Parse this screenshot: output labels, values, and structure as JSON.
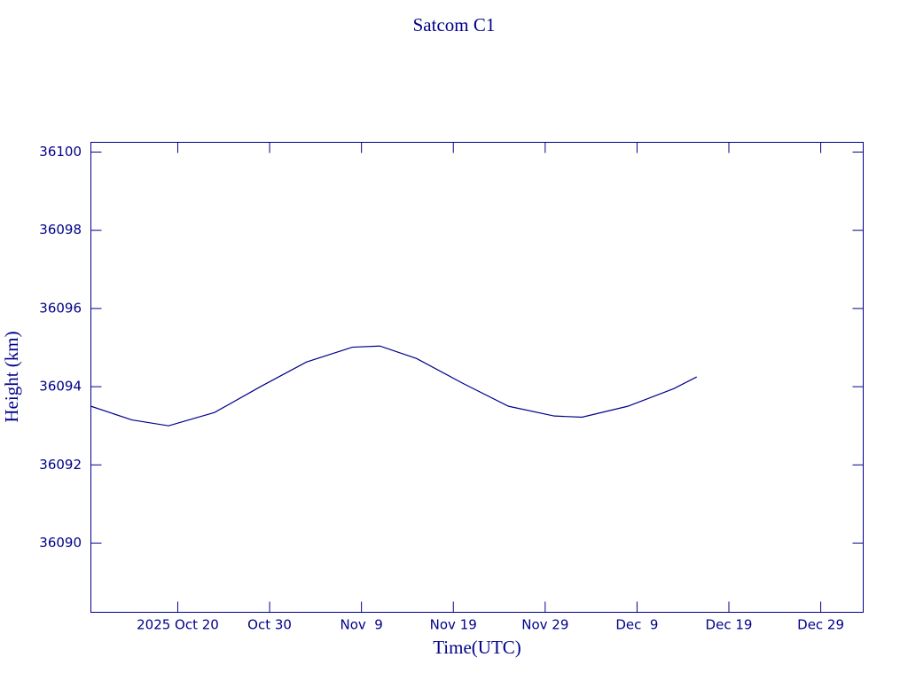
{
  "chart_data": {
    "type": "line",
    "title": "Satcom C1",
    "x_label": "Time(UTC)",
    "y_label": "Height (km)",
    "x": [
      "2025-10-10T13:00Z",
      "2025-10-15T00:00Z",
      "2025-10-19T00:00Z",
      "2025-10-24T00:00Z",
      "2025-10-29T00:00Z",
      "2025-11-03T00:00Z",
      "2025-11-08T00:00Z",
      "2025-11-11T00:00Z",
      "2025-11-15T00:00Z",
      "2025-11-20T00:00Z",
      "2025-11-25T00:00Z",
      "2025-11-30T00:00Z",
      "2025-12-03T00:00Z",
      "2025-12-08T00:00Z",
      "2025-12-13T00:00Z",
      "2025-12-15T12:00Z"
    ],
    "values": [
      36093.5,
      36093.15,
      36093.0,
      36093.34,
      36094.0,
      36094.63,
      36095.01,
      36095.04,
      36094.72,
      36094.09,
      36093.5,
      36093.25,
      36093.22,
      36093.5,
      36093.95,
      36094.25
    ],
    "color": "#00008b",
    "xlim": [
      "2025-10-10T13:00Z",
      "2026-01-02T15:00Z"
    ],
    "xticks": [
      {
        "value": "2025-10-20",
        "label": "2025 Oct 20"
      },
      {
        "value": "2025-10-30",
        "label": "Oct 30"
      },
      {
        "value": "2025-11-09",
        "label": "Nov  9"
      },
      {
        "value": "2025-11-19",
        "label": "Nov 19"
      },
      {
        "value": "2025-11-29",
        "label": "Nov 29"
      },
      {
        "value": "2025-12-09",
        "label": "Dec  9"
      },
      {
        "value": "2025-12-19",
        "label": "Dec 19"
      },
      {
        "value": "2025-12-29",
        "label": "Dec 29"
      }
    ],
    "ylim": [
      36088.23,
      36100.25
    ],
    "yticks": [
      36090,
      36092,
      36094,
      36096,
      36098,
      36100
    ]
  }
}
